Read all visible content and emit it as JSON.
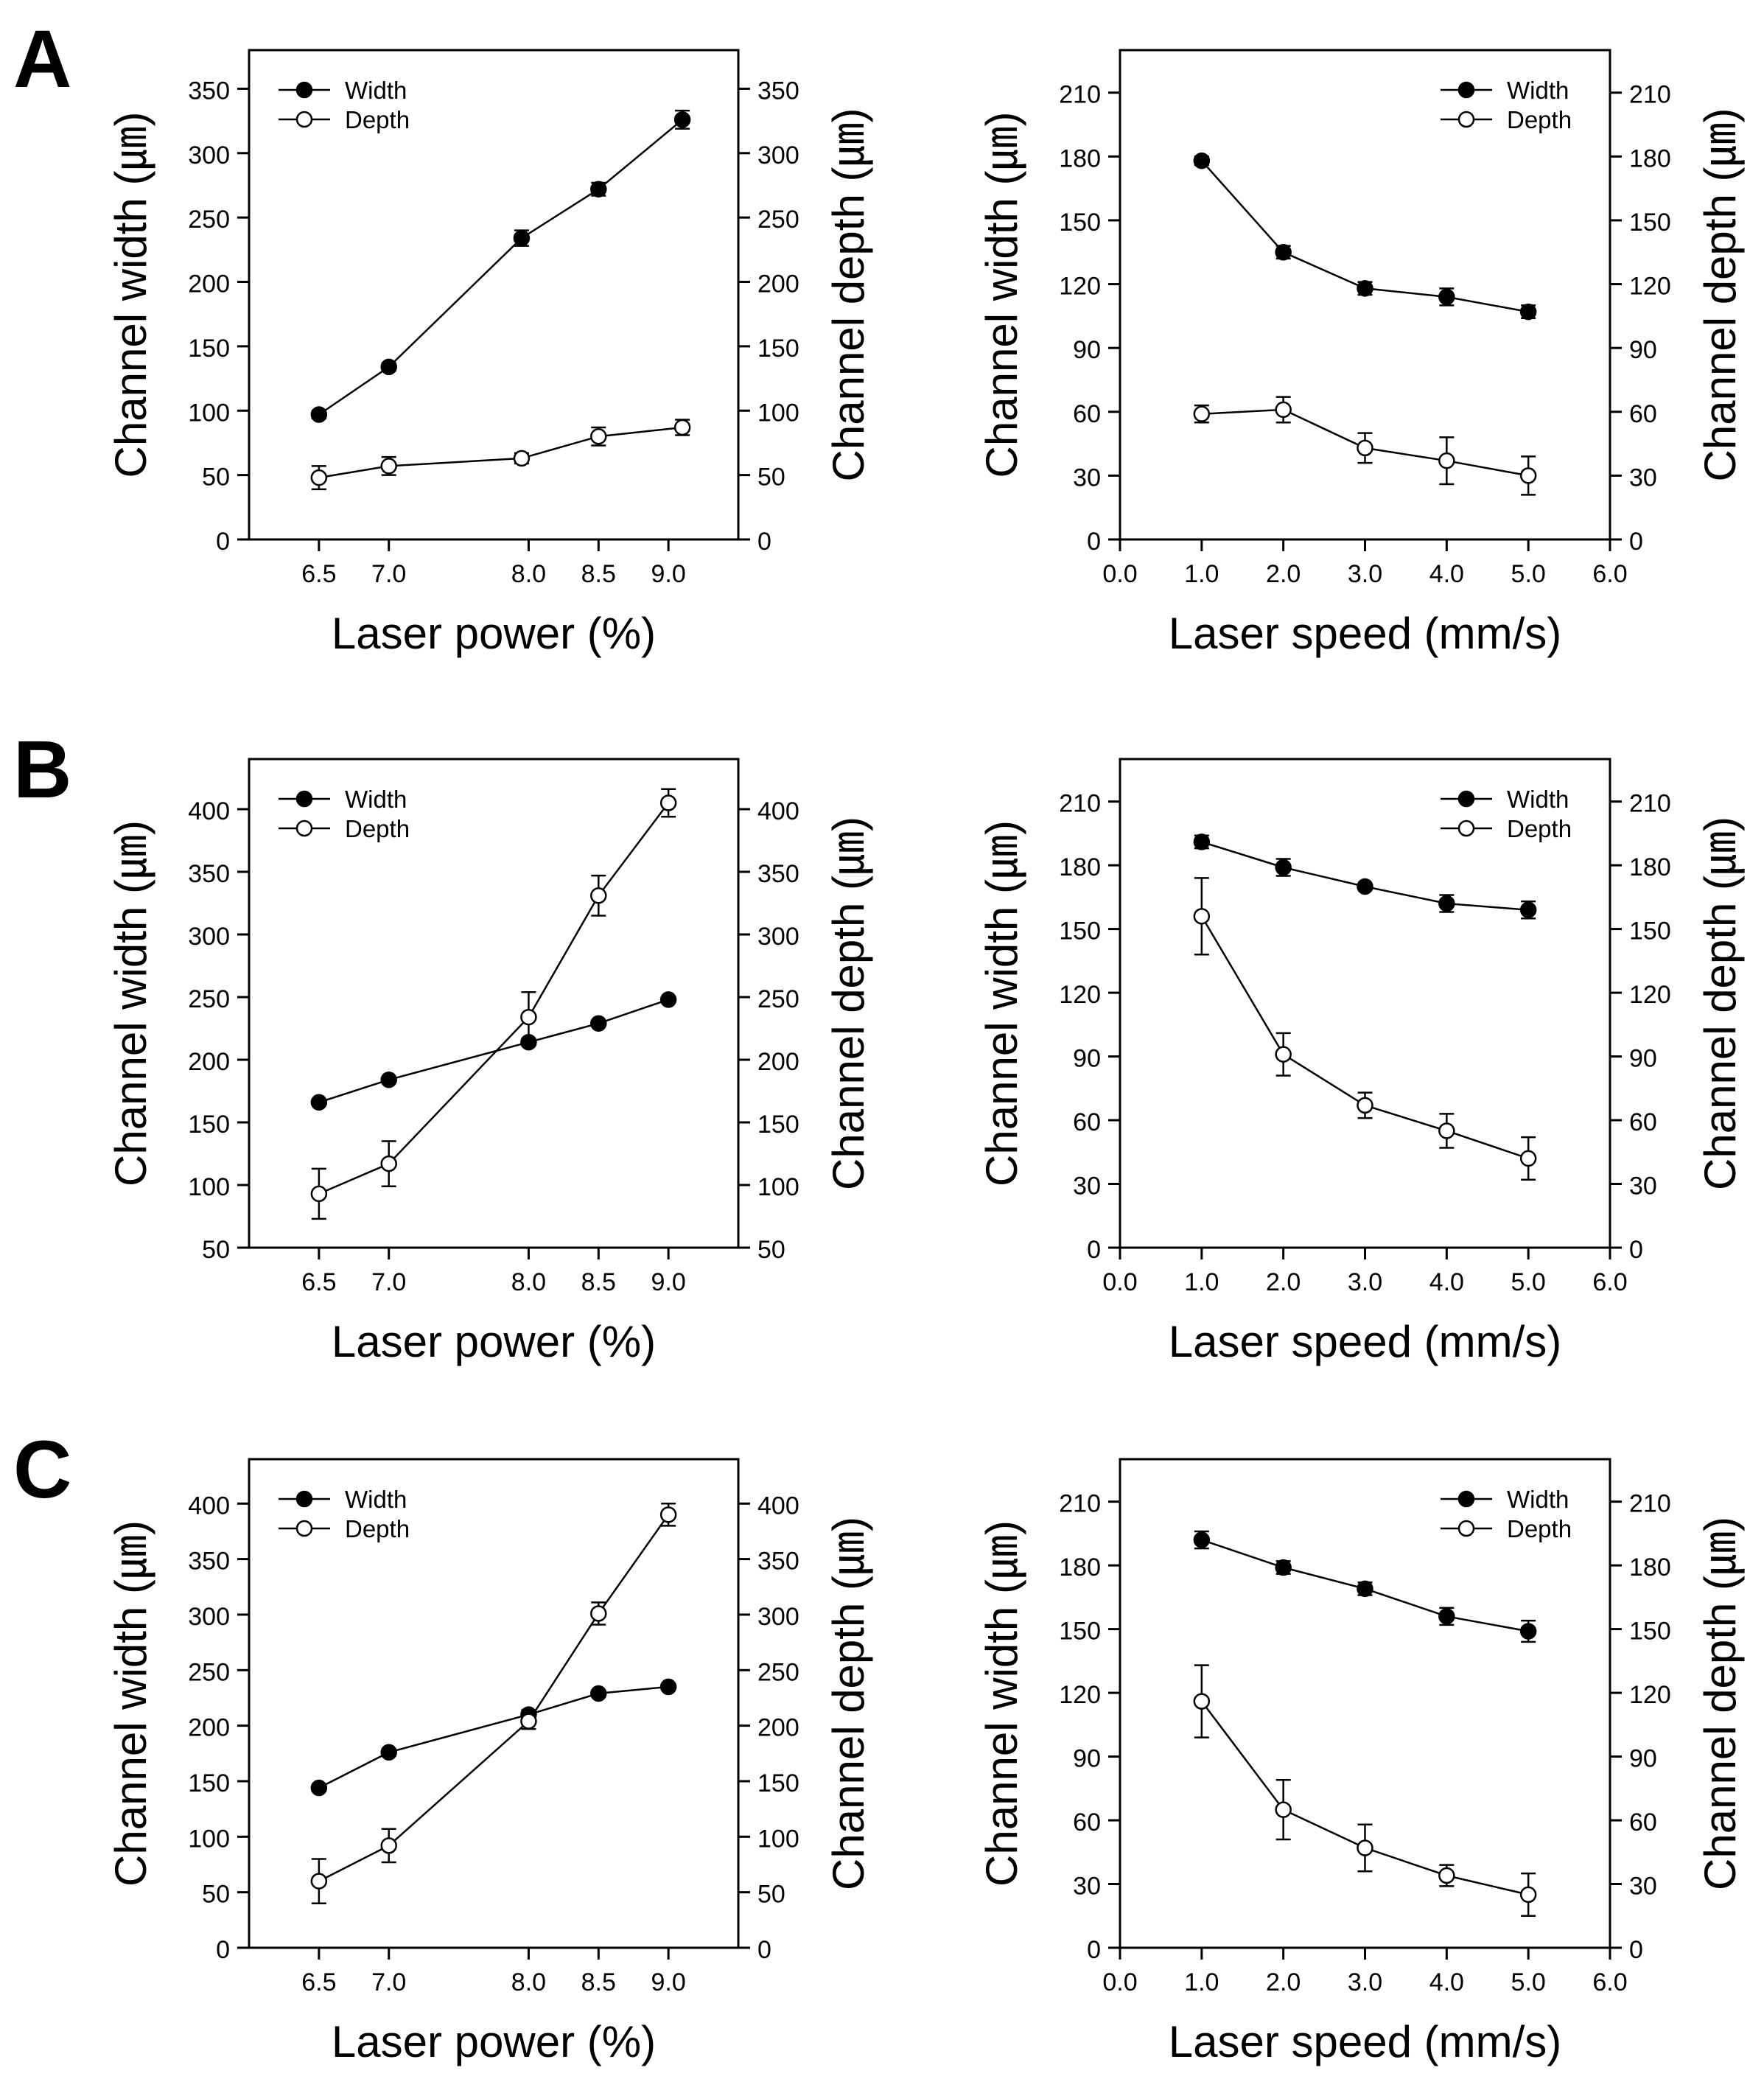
{
  "panels": [
    "A",
    "B",
    "C"
  ],
  "chart_data": [
    {
      "id": "A-power",
      "row": 0,
      "col": 0,
      "type": "line",
      "x_ticks": [
        "6.5",
        "7.0",
        "8.0",
        "8.5",
        "9.0"
      ],
      "x_tick_values": [
        6.5,
        7.0,
        8.0,
        8.5,
        9.0
      ],
      "xlim": [
        6.0,
        9.5
      ],
      "xlabel": "Laser power (%)",
      "ylabel_left": "Channel width (㎛)",
      "ylabel_right": "Channel depth (㎛)",
      "ylim": [
        0,
        380
      ],
      "y_ticks": [
        "0",
        "50",
        "100",
        "150",
        "200",
        "250",
        "300",
        "350"
      ],
      "y_tick_values": [
        0,
        50,
        100,
        150,
        200,
        250,
        300,
        350
      ],
      "legend_position": "top-left",
      "series": [
        {
          "name": "Width",
          "marker": "filled",
          "x": [
            6.5,
            7.0,
            7.95,
            8.5,
            9.1
          ],
          "y": [
            97,
            134,
            234,
            272,
            326
          ],
          "err": [
            3,
            3,
            6,
            5,
            7
          ]
        },
        {
          "name": "Depth",
          "marker": "open",
          "x": [
            6.5,
            7.0,
            7.95,
            8.5,
            9.1
          ],
          "y": [
            48,
            57,
            63,
            80,
            87
          ],
          "err": [
            9,
            7,
            4,
            7,
            6
          ]
        }
      ]
    },
    {
      "id": "A-speed",
      "row": 0,
      "col": 1,
      "type": "line",
      "x_ticks": [
        "0.0",
        "1.0",
        "2.0",
        "3.0",
        "4.0",
        "5.0",
        "6.0"
      ],
      "x_tick_values": [
        0,
        1,
        2,
        3,
        4,
        5,
        6
      ],
      "xlim": [
        0,
        6
      ],
      "xlabel": "Laser speed (mm/s)",
      "ylabel_left": "Channel width (㎛)",
      "ylabel_right": "Channel depth (㎛)",
      "ylim": [
        0,
        230
      ],
      "y_ticks": [
        "0",
        "30",
        "60",
        "90",
        "120",
        "150",
        "180",
        "210"
      ],
      "y_tick_values": [
        0,
        30,
        60,
        90,
        120,
        150,
        180,
        210
      ],
      "legend_position": "top-right",
      "series": [
        {
          "name": "Width",
          "marker": "filled",
          "x": [
            1,
            2,
            3,
            4,
            5
          ],
          "y": [
            178,
            135,
            118,
            114,
            107
          ],
          "err": [
            2,
            3,
            3,
            4,
            3
          ]
        },
        {
          "name": "Depth",
          "marker": "open",
          "x": [
            1,
            2,
            3,
            4,
            5
          ],
          "y": [
            59,
            61,
            43,
            37,
            30
          ],
          "err": [
            4,
            6,
            7,
            11,
            9
          ]
        }
      ]
    },
    {
      "id": "B-power",
      "row": 1,
      "col": 0,
      "type": "line",
      "x_ticks": [
        "6.5",
        "7.0",
        "8.0",
        "8.5",
        "9.0"
      ],
      "x_tick_values": [
        6.5,
        7.0,
        8.0,
        8.5,
        9.0
      ],
      "xlim": [
        6.0,
        9.5
      ],
      "xlabel": "Laser power (%)",
      "ylabel_left": "Channel width (㎛)",
      "ylabel_right": "Channel depth (㎛)",
      "ylim": [
        50,
        440
      ],
      "y_ticks": [
        "50",
        "100",
        "150",
        "200",
        "250",
        "300",
        "350",
        "400"
      ],
      "y_tick_values": [
        50,
        100,
        150,
        200,
        250,
        300,
        350,
        400
      ],
      "legend_position": "top-left",
      "series": [
        {
          "name": "Width",
          "marker": "filled",
          "x": [
            6.5,
            7.0,
            8.0,
            8.5,
            9.0
          ],
          "y": [
            166,
            184,
            214,
            229,
            248
          ],
          "err": [
            2,
            2,
            3,
            2,
            2
          ]
        },
        {
          "name": "Depth",
          "marker": "open",
          "x": [
            6.5,
            7.0,
            8.0,
            8.5,
            9.0
          ],
          "y": [
            93,
            117,
            234,
            331,
            405
          ],
          "err": [
            20,
            18,
            20,
            16,
            11
          ]
        }
      ]
    },
    {
      "id": "B-speed",
      "row": 1,
      "col": 1,
      "type": "line",
      "x_ticks": [
        "0.0",
        "1.0",
        "2.0",
        "3.0",
        "4.0",
        "5.0",
        "6.0"
      ],
      "x_tick_values": [
        0,
        1,
        2,
        3,
        4,
        5,
        6
      ],
      "xlim": [
        0,
        6
      ],
      "xlabel": "Laser speed (mm/s)",
      "ylabel_left": "Channel width (㎛)",
      "ylabel_right": "Channel depth (㎛)",
      "ylim": [
        0,
        230
      ],
      "y_ticks": [
        "0",
        "30",
        "60",
        "90",
        "120",
        "150",
        "180",
        "210"
      ],
      "y_tick_values": [
        0,
        30,
        60,
        90,
        120,
        150,
        180,
        210
      ],
      "legend_position": "top-right",
      "series": [
        {
          "name": "Width",
          "marker": "filled",
          "x": [
            1,
            2,
            3,
            4,
            5
          ],
          "y": [
            191,
            179,
            170,
            162,
            159
          ],
          "err": [
            3,
            4,
            1,
            4,
            4
          ]
        },
        {
          "name": "Depth",
          "marker": "open",
          "x": [
            1,
            2,
            3,
            4,
            5
          ],
          "y": [
            156,
            91,
            67,
            55,
            42
          ],
          "err": [
            18,
            10,
            6,
            8,
            10
          ]
        }
      ]
    },
    {
      "id": "C-power",
      "row": 2,
      "col": 0,
      "type": "line",
      "x_ticks": [
        "6.5",
        "7.0",
        "8.0",
        "8.5",
        "9.0"
      ],
      "x_tick_values": [
        6.5,
        7.0,
        8.0,
        8.5,
        9.0
      ],
      "xlim": [
        6.0,
        9.5
      ],
      "xlabel": "Laser power (%)",
      "ylabel_left": "Channel width (㎛)",
      "ylabel_right": "Channel depth (㎛)",
      "ylim": [
        0,
        440
      ],
      "y_ticks": [
        "0",
        "50",
        "100",
        "150",
        "200",
        "250",
        "300",
        "350",
        "400"
      ],
      "y_tick_values": [
        0,
        50,
        100,
        150,
        200,
        250,
        300,
        350,
        400
      ],
      "legend_position": "top-left",
      "series": [
        {
          "name": "Width",
          "marker": "filled",
          "x": [
            6.5,
            7.0,
            8.0,
            8.5,
            9.0
          ],
          "y": [
            144,
            176,
            210,
            229,
            235
          ],
          "err": [
            3,
            3,
            4,
            2,
            2
          ]
        },
        {
          "name": "Depth",
          "marker": "open",
          "x": [
            6.5,
            7.0,
            8.0,
            8.5,
            9.0
          ],
          "y": [
            60,
            92,
            204,
            301,
            390
          ],
          "err": [
            20,
            15,
            7,
            10,
            10
          ]
        }
      ]
    },
    {
      "id": "C-speed",
      "row": 2,
      "col": 1,
      "type": "line",
      "x_ticks": [
        "0.0",
        "1.0",
        "2.0",
        "3.0",
        "4.0",
        "5.0",
        "6.0"
      ],
      "x_tick_values": [
        0,
        1,
        2,
        3,
        4,
        5,
        6
      ],
      "xlim": [
        0,
        6
      ],
      "xlabel": "Laser speed (mm/s)",
      "ylabel_left": "Channel width (㎛)",
      "ylabel_right": "Channel depth (㎛)",
      "ylim": [
        0,
        230
      ],
      "y_ticks": [
        "0",
        "30",
        "60",
        "90",
        "120",
        "150",
        "180",
        "210"
      ],
      "y_tick_values": [
        0,
        30,
        60,
        90,
        120,
        150,
        180,
        210
      ],
      "legend_position": "top-right",
      "series": [
        {
          "name": "Width",
          "marker": "filled",
          "x": [
            1,
            2,
            3,
            4,
            5
          ],
          "y": [
            192,
            179,
            169,
            156,
            149
          ],
          "err": [
            4,
            3,
            3,
            4,
            5
          ]
        },
        {
          "name": "Depth",
          "marker": "open",
          "x": [
            1,
            2,
            3,
            4,
            5
          ],
          "y": [
            116,
            65,
            47,
            34,
            25
          ],
          "err": [
            17,
            14,
            11,
            5,
            10
          ]
        }
      ]
    }
  ]
}
